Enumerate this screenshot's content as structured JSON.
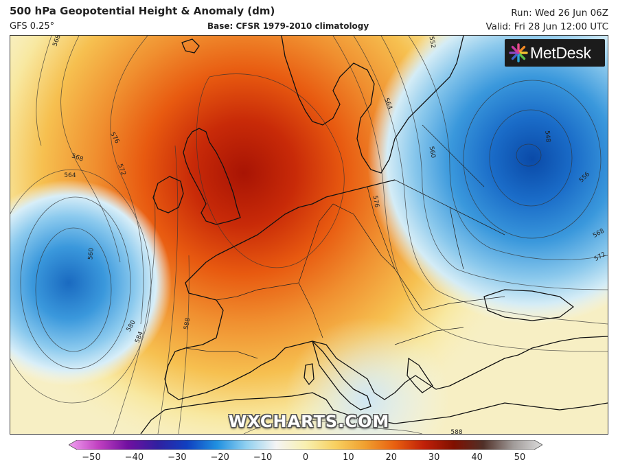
{
  "header": {
    "title": "500 hPa Geopotential Height & Anomaly (dm)",
    "model": "GFS 0.25°",
    "base": "Base: CFSR 1979-2010 climatology",
    "run": "Run: Wed 26 Jun 06Z",
    "valid": "Valid: Fri 28 Jun 12:00 UTC"
  },
  "logo": {
    "text": "MetDesk"
  },
  "watermark": "WXCHARTS.COM",
  "colorbar": {
    "ticks": [
      "−50",
      "−40",
      "−30",
      "−20",
      "−10",
      "0",
      "10",
      "20",
      "30",
      "40",
      "50"
    ],
    "colors": [
      "#f0a0f0",
      "#c040c0",
      "#7010a0",
      "#3020a0",
      "#1040c0",
      "#2090e0",
      "#90d0f0",
      "#f4f4f4",
      "#f8f0b0",
      "#f8d060",
      "#f0a030",
      "#e86010",
      "#c02008",
      "#801000",
      "#503028",
      "#a09a98",
      "#dcdcdc"
    ]
  },
  "contours": {
    "labels": [
      "568",
      "576",
      "568",
      "564",
      "572",
      "560",
      "580",
      "584",
      "588",
      "564",
      "560",
      "552",
      "548",
      "556",
      "568",
      "572",
      "576",
      "588"
    ]
  }
}
